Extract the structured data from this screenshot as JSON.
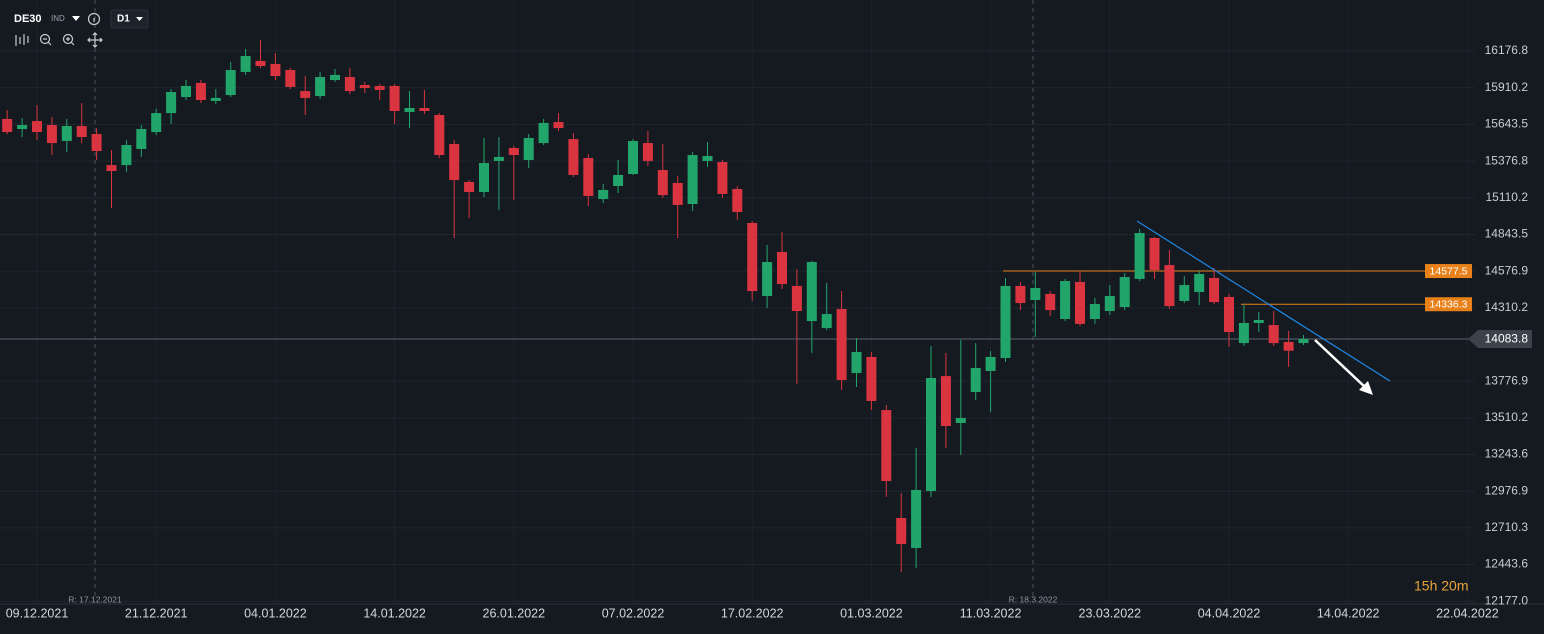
{
  "toolbar": {
    "symbol": "DE30",
    "market": "IND",
    "timeframe": "D1"
  },
  "countdown": "15h 20m",
  "chart_data": {
    "type": "candlestick",
    "categories": [
      null,
      null,
      "09.12.2021",
      null,
      null,
      null,
      null,
      null,
      null,
      null,
      "21.12.2021",
      null,
      null,
      null,
      null,
      null,
      null,
      null,
      "04.01.2022",
      null,
      null,
      null,
      null,
      null,
      null,
      null,
      "14.01.2022",
      null,
      null,
      null,
      null,
      null,
      null,
      null,
      "26.01.2022",
      null,
      null,
      null,
      null,
      null,
      null,
      null,
      "07.02.2022",
      null,
      null,
      null,
      null,
      null,
      null,
      null,
      "17.02.2022",
      null,
      null,
      null,
      null,
      null,
      null,
      null,
      "01.03.2022",
      null,
      null,
      null,
      null,
      null,
      null,
      null,
      "11.03.2022",
      null,
      null,
      null,
      null,
      null,
      null,
      null,
      "23.03.2022",
      null,
      null,
      null,
      null,
      null,
      null,
      null,
      "04.04.2022",
      null,
      null,
      null,
      null,
      null,
      null,
      null,
      "14.04.2022",
      null,
      null,
      null,
      null,
      null,
      null,
      null,
      "22.04.2022"
    ],
    "open": [
      15683,
      15610,
      15668,
      15639,
      15523,
      15632,
      15574,
      15348,
      15348,
      15465,
      15588,
      15726,
      15843,
      15945,
      15814,
      15857,
      16025,
      16105,
      16083,
      16039,
      15886,
      15850,
      15966,
      15988,
      15930,
      15923,
      15923,
      15734,
      15763,
      15712,
      15501,
      15225,
      15152,
      15378,
      15472,
      15385,
      15508,
      15661,
      15537,
      15399,
      15101,
      15196,
      15283,
      15508,
      15312,
      15218,
      15065,
      15378,
      15370,
      15174,
      14927,
      14396,
      14716,
      14469,
      14214,
      14163,
      14302,
      13836,
      13953,
      13567,
      12782,
      12564,
      12978,
      13814,
      13473,
      13698,
      13851,
      13945,
      14469,
      14367,
      14411,
      14229,
      14498,
      14229,
      14287,
      14316,
      14520,
      14818,
      14621,
      14360,
      14425,
      14527,
      14389,
      14054,
      14200,
      14185,
      14062,
      14054,
      null,
      null,
      null,
      null,
      null,
      null,
      null,
      null,
      null,
      null,
      null
    ],
    "high": [
      15748,
      15690,
      15785,
      15697,
      15683,
      15799,
      15617,
      15457,
      15530,
      15639,
      15756,
      15901,
      15966,
      15966,
      15901,
      16097,
      16192,
      16257,
      16163,
      16054,
      15995,
      16025,
      16046,
      16054,
      15952,
      15937,
      15937,
      15886,
      15894,
      15726,
      15530,
      15239,
      15545,
      15552,
      15487,
      15574,
      15683,
      15726,
      15581,
      15428,
      15210,
      15385,
      15537,
      15596,
      15501,
      15268,
      15443,
      15516,
      15385,
      15196,
      14941,
      14767,
      14861,
      14592,
      14651,
      14491,
      14432,
      14091,
      13989,
      13604,
      12964,
      13291,
      14033,
      13982,
      14076,
      14054,
      13996,
      14527,
      14498,
      14571,
      14432,
      14520,
      14578,
      14382,
      14476,
      14563,
      14883,
      14825,
      14730,
      14541,
      14578,
      14600,
      14411,
      14331,
      14280,
      14287,
      14142,
      14113,
      null,
      null,
      null,
      null,
      null,
      null,
      null,
      null,
      null,
      null,
      null
    ],
    "low": [
      15574,
      15552,
      15530,
      15421,
      15443,
      15508,
      15385,
      15036,
      15298,
      15407,
      15567,
      15647,
      15821,
      15799,
      15792,
      15843,
      16003,
      16054,
      15966,
      15901,
      15712,
      15828,
      15952,
      15865,
      15872,
      15821,
      15647,
      15617,
      15719,
      15399,
      14818,
      14963,
      15116,
      15021,
      15094,
      15327,
      15494,
      15596,
      15261,
      15050,
      15072,
      15145,
      15276,
      15341,
      15109,
      14818,
      15014,
      15334,
      15109,
      14949,
      14360,
      14309,
      14447,
      13756,
      13982,
      14149,
      13713,
      13735,
      13567,
      12935,
      12390,
      12419,
      12935,
      13291,
      13240,
      13640,
      13553,
      13916,
      14294,
      14098,
      14251,
      14214,
      14178,
      14193,
      14258,
      14294,
      14505,
      14520,
      14302,
      14345,
      14331,
      14338,
      14025,
      14033,
      14134,
      14033,
      13880,
      14040,
      null,
      null,
      null,
      null,
      null,
      null,
      null,
      null,
      null,
      null,
      null
    ],
    "close": [
      15588,
      15639,
      15588,
      15508,
      15632,
      15552,
      15450,
      15305,
      15494,
      15610,
      15726,
      15879,
      15923,
      15821,
      15836,
      16039,
      16141,
      16068,
      15995,
      15916,
      15836,
      15988,
      16003,
      15886,
      15908,
      15894,
      15741,
      15763,
      15741,
      15421,
      15239,
      15152,
      15363,
      15407,
      15421,
      15545,
      15654,
      15617,
      15276,
      15123,
      15167,
      15276,
      15523,
      15378,
      15130,
      15058,
      15421,
      15414,
      15138,
      15007,
      14432,
      14643,
      14483,
      14287,
      14643,
      14265,
      13785,
      13989,
      13633,
      13051,
      12593,
      12986,
      13800,
      13451,
      13509,
      13873,
      13953,
      14469,
      14345,
      14454,
      14294,
      14505,
      14193,
      14338,
      14396,
      14534,
      14854,
      14585,
      14323,
      14476,
      14556,
      14352,
      14134,
      14200,
      14222,
      14054,
      13998,
      14083.8,
      null,
      null,
      null,
      null,
      null,
      null,
      null,
      null,
      null,
      null,
      null
    ],
    "up_color": "#22a56b",
    "down_color": "#d9343f",
    "ylim": [
      12157,
      16548
    ],
    "yticks": [
      16176.8,
      15910.2,
      15643.5,
      15376.8,
      15110.2,
      14843.5,
      14576.9,
      14310.2,
      13776.9,
      13510.2,
      13243.6,
      12976.9,
      12710.3,
      12443.6,
      {
        "value": 12177,
        "label": "12177.0"
      }
    ],
    "grid": true,
    "last_price": 14083.8,
    "levels": [
      {
        "value": 14577.5,
        "color": "#e8811a"
      },
      {
        "value": 14336.3,
        "color": "#e8811a"
      }
    ],
    "trendline": {
      "values": [
        14941,
        13778
      ],
      "color": "#1e88e5"
    },
    "markers": [
      {
        "label": "R: 17.12.2021"
      },
      {
        "label": "R: 18.3.2022"
      }
    ]
  }
}
